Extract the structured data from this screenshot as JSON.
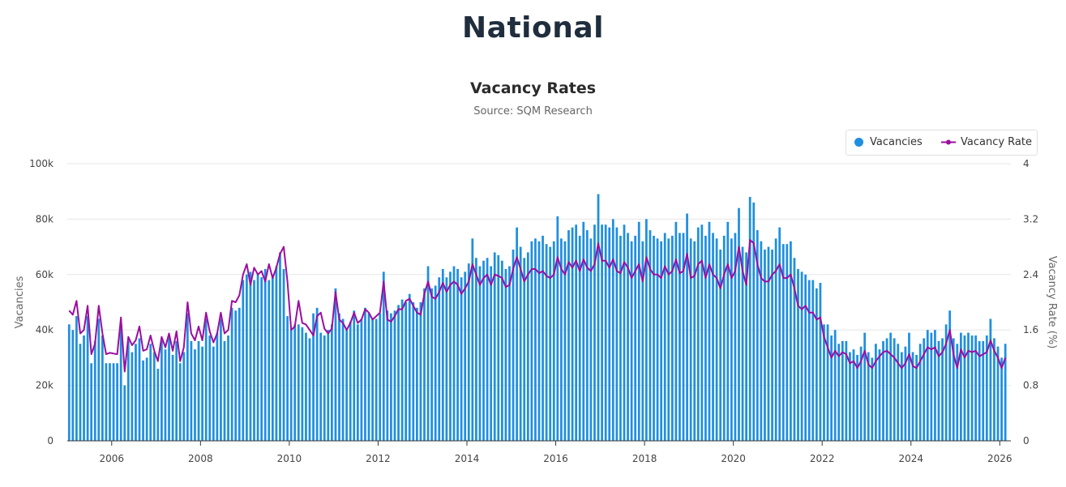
{
  "page": {
    "title": "National"
  },
  "colors": {
    "bars": "#1f8fe0",
    "line": "#9b0ea0",
    "grid": "#e6e6e6"
  },
  "chart_data": {
    "type": "bar",
    "title": "Vacancy Rates",
    "subtitle": "Source: SQM Research",
    "legend_placement": "top-right",
    "grid": true,
    "x_range": [
      "2005-01",
      "2026-04"
    ],
    "x_ticks": [
      "2006",
      "2008",
      "2010",
      "2012",
      "2014",
      "2016",
      "2018",
      "2020",
      "2022",
      "2024",
      "2026"
    ],
    "y_left": {
      "label": "Vacancies",
      "range": [
        0,
        100000
      ],
      "ticks": [
        "0",
        "20k",
        "40k",
        "60k",
        "80k",
        "100k"
      ]
    },
    "y_right": {
      "label": "Vacancy Rate (%)",
      "range": [
        0,
        4
      ],
      "ticks": [
        "0",
        "0.8",
        "1.6",
        "2.4",
        "3.2",
        "4"
      ]
    },
    "series": [
      {
        "name": "Vacancies",
        "type": "bar",
        "axis": "left"
      },
      {
        "name": "Vacancy Rate",
        "type": "line",
        "axis": "right"
      }
    ],
    "start": "2005-01",
    "vacancies": [
      42000,
      40000,
      45000,
      35000,
      38000,
      45000,
      28000,
      36000,
      44000,
      38000,
      28000,
      28000,
      28000,
      28000,
      42000,
      20000,
      36000,
      32000,
      35000,
      37000,
      29000,
      30000,
      35000,
      32000,
      26000,
      36000,
      33000,
      38000,
      31000,
      36000,
      28000,
      32000,
      46000,
      36000,
      33000,
      36000,
      34000,
      44000,
      38000,
      34000,
      39000,
      44000,
      36000,
      38000,
      48000,
      47000,
      48000,
      58000,
      60000,
      61000,
      58000,
      60000,
      59000,
      62000,
      58000,
      60000,
      63000,
      68000,
      62000,
      45000,
      40000,
      42000,
      42000,
      41000,
      39000,
      37000,
      46000,
      48000,
      39000,
      38000,
      40000,
      42000,
      55000,
      46000,
      44000,
      40000,
      43000,
      47000,
      42000,
      44000,
      48000,
      46000,
      44000,
      44000,
      46000,
      61000,
      47000,
      46000,
      47000,
      49000,
      51000,
      50000,
      53000,
      50000,
      48000,
      50000,
      55000,
      63000,
      55000,
      56000,
      59000,
      62000,
      59000,
      61000,
      63000,
      62000,
      59000,
      61000,
      64000,
      73000,
      66000,
      63000,
      65000,
      66000,
      63000,
      68000,
      67000,
      65000,
      62000,
      63000,
      69000,
      77000,
      70000,
      66000,
      68000,
      72000,
      73000,
      72000,
      74000,
      71000,
      70000,
      72000,
      81000,
      73000,
      72000,
      76000,
      77000,
      78000,
      74000,
      79000,
      76000,
      73000,
      78000,
      89000,
      78000,
      78000,
      77000,
      80000,
      77000,
      74000,
      78000,
      75000,
      72000,
      74000,
      79000,
      72000,
      80000,
      76000,
      74000,
      73000,
      72000,
      75000,
      73000,
      74000,
      79000,
      75000,
      75000,
      82000,
      73000,
      72000,
      77000,
      78000,
      74000,
      79000,
      75000,
      73000,
      69000,
      74000,
      79000,
      73000,
      75000,
      84000,
      70000,
      68000,
      88000,
      86000,
      76000,
      72000,
      69000,
      70000,
      69000,
      73000,
      77000,
      71000,
      71000,
      72000,
      66000,
      62000,
      61000,
      60000,
      58000,
      58000,
      55000,
      57000,
      42000,
      42000,
      38000,
      40000,
      35000,
      36000,
      36000,
      32000,
      33000,
      31000,
      34000,
      39000,
      32000,
      30000,
      35000,
      33000,
      36000,
      37000,
      39000,
      37000,
      35000,
      32000,
      34000,
      39000,
      32000,
      31000,
      35000,
      37000,
      40000,
      39000,
      40000,
      36000,
      37000,
      42000,
      47000,
      37000,
      35000,
      39000,
      38000,
      39000,
      38000,
      38000,
      36000,
      36000,
      38000,
      44000,
      37000,
      34000,
      30000,
      35000
    ],
    "vacancy_rate": [
      1.88,
      1.82,
      2.02,
      1.55,
      1.6,
      1.95,
      1.25,
      1.4,
      1.95,
      1.55,
      1.25,
      1.27,
      1.26,
      1.25,
      1.78,
      1.0,
      1.5,
      1.38,
      1.45,
      1.65,
      1.3,
      1.32,
      1.52,
      1.3,
      1.15,
      1.5,
      1.35,
      1.55,
      1.3,
      1.58,
      1.15,
      1.35,
      2.0,
      1.55,
      1.45,
      1.65,
      1.45,
      1.85,
      1.58,
      1.42,
      1.55,
      1.85,
      1.55,
      1.6,
      2.02,
      2.0,
      2.1,
      2.4,
      2.55,
      2.25,
      2.5,
      2.4,
      2.45,
      2.3,
      2.55,
      2.35,
      2.5,
      2.7,
      2.8,
      2.3,
      1.6,
      1.65,
      2.02,
      1.7,
      1.68,
      1.6,
      1.52,
      1.8,
      1.85,
      1.62,
      1.55,
      1.62,
      2.15,
      1.75,
      1.7,
      1.6,
      1.7,
      1.85,
      1.7,
      1.75,
      1.9,
      1.85,
      1.75,
      1.8,
      1.85,
      2.3,
      1.75,
      1.72,
      1.8,
      1.9,
      1.9,
      2.02,
      2.05,
      1.95,
      1.85,
      1.82,
      2.12,
      2.3,
      2.08,
      2.05,
      2.15,
      2.28,
      2.15,
      2.25,
      2.3,
      2.25,
      2.12,
      2.2,
      2.3,
      2.55,
      2.4,
      2.25,
      2.35,
      2.4,
      2.25,
      2.4,
      2.38,
      2.35,
      2.22,
      2.25,
      2.48,
      2.65,
      2.48,
      2.3,
      2.4,
      2.48,
      2.48,
      2.42,
      2.45,
      2.38,
      2.35,
      2.4,
      2.65,
      2.48,
      2.4,
      2.58,
      2.5,
      2.6,
      2.45,
      2.62,
      2.5,
      2.45,
      2.55,
      2.85,
      2.6,
      2.6,
      2.5,
      2.62,
      2.45,
      2.42,
      2.58,
      2.5,
      2.35,
      2.45,
      2.55,
      2.3,
      2.65,
      2.48,
      2.4,
      2.4,
      2.35,
      2.52,
      2.4,
      2.45,
      2.62,
      2.42,
      2.45,
      2.7,
      2.35,
      2.38,
      2.55,
      2.6,
      2.35,
      2.55,
      2.4,
      2.35,
      2.2,
      2.4,
      2.55,
      2.35,
      2.45,
      2.8,
      2.45,
      2.25,
      2.9,
      2.85,
      2.55,
      2.35,
      2.3,
      2.3,
      2.4,
      2.45,
      2.55,
      2.35,
      2.35,
      2.4,
      2.2,
      1.95,
      1.9,
      1.95,
      1.85,
      1.85,
      1.75,
      1.78,
      1.5,
      1.35,
      1.2,
      1.3,
      1.22,
      1.28,
      1.25,
      1.12,
      1.15,
      1.05,
      1.15,
      1.3,
      1.1,
      1.05,
      1.15,
      1.22,
      1.28,
      1.3,
      1.25,
      1.2,
      1.12,
      1.05,
      1.12,
      1.25,
      1.08,
      1.05,
      1.15,
      1.25,
      1.35,
      1.32,
      1.35,
      1.22,
      1.28,
      1.4,
      1.6,
      1.25,
      1.05,
      1.32,
      1.2,
      1.3,
      1.28,
      1.3,
      1.22,
      1.25,
      1.28,
      1.45,
      1.3,
      1.2,
      1.05,
      1.2
    ]
  }
}
